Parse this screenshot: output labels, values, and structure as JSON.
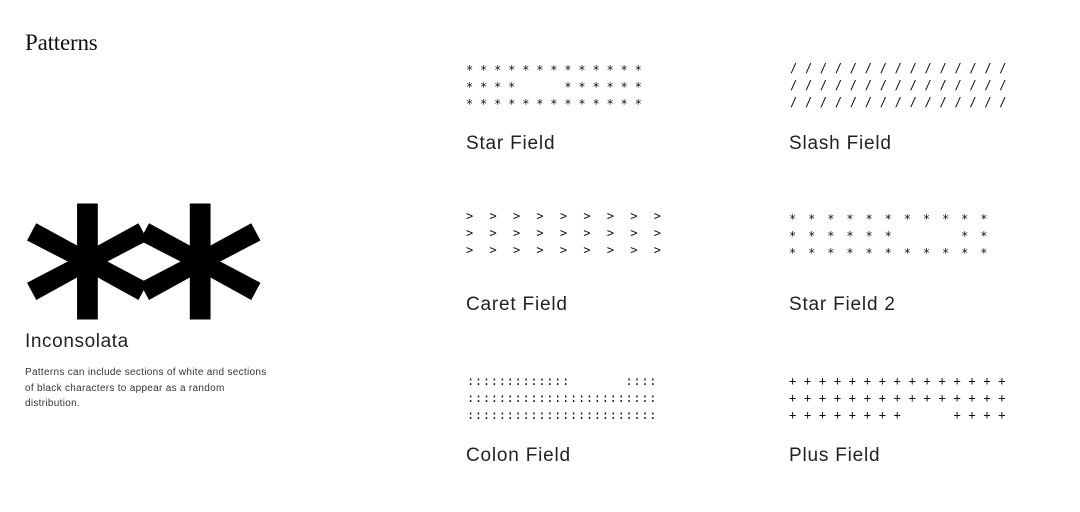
{
  "header": {
    "title": "Patterns"
  },
  "specimen": {
    "glyph": "**",
    "font_name": "Inconsolata",
    "description": "Patterns can include sections of white and sections of black characters to appear as a random distribution."
  },
  "patterns": [
    {
      "label": "Star Field",
      "lines": [
        "* * * * * * * * * * * * *",
        "* * * *       * * * * * *",
        "* * * * * * * * * * * * *"
      ]
    },
    {
      "label": "Slash Field",
      "lines": [
        "/ / / / / / / / / / / / / / /",
        "/ / / / / / / / / / / / / / /",
        "/ / / / / / / / / / / / / / /"
      ]
    },
    {
      "label": "Caret Field",
      "lines": [
        ">  >  >  >  >  >  >  >  >",
        ">  >  >  >  >  >  >  >  >",
        ">  >  >  >  >  >  >  >  >"
      ]
    },
    {
      "label": "Star Field 2",
      "lines": [
        "*  *  *  *  *  *  *  *  *  *  *",
        "*  *  *  *  *  *           *  *",
        "*  *  *  *  *  *  *  *  *  *  *"
      ]
    },
    {
      "label": "Colon Field",
      "lines": [
        ":::::::::::::       ::::",
        "::::::::::::::::::::::::",
        "::::::::::::::::::::::::"
      ]
    },
    {
      "label": "Plus Field",
      "lines": [
        "+ + + + + + + + + + + + + + +",
        "+ + + + + + + + + + + + + + +",
        "+ + + + + + + +       + + + +"
      ]
    }
  ]
}
